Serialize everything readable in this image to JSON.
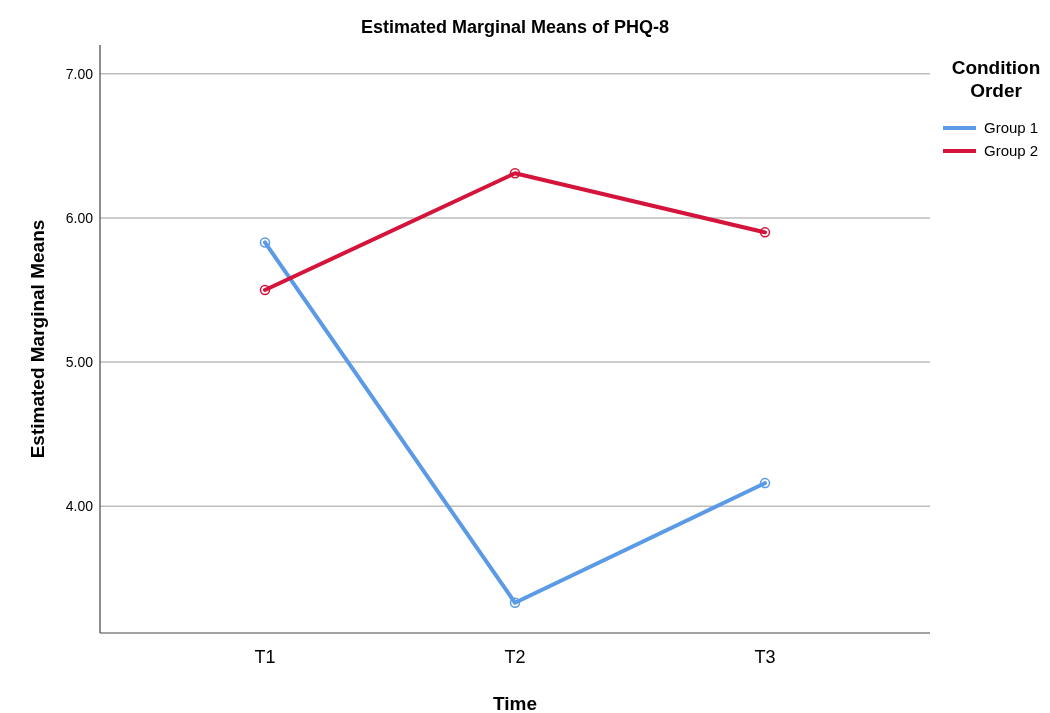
{
  "chart_data": {
    "type": "line",
    "title": "Estimated Marginal Means of PHQ-8",
    "xlabel": "Time",
    "ylabel": "Estimated Marginal Means",
    "legend_title": "Condition Order",
    "categories": [
      "T1",
      "T2",
      "T3"
    ],
    "series": [
      {
        "name": "Group 1",
        "color": "#5b9be6",
        "values": [
          5.83,
          3.33,
          4.16
        ]
      },
      {
        "name": "Group 2",
        "color": "#d5143c",
        "values": [
          5.5,
          6.31,
          5.9
        ]
      }
    ],
    "ylim": [
      3.12,
      7.2
    ],
    "yticks": [
      {
        "value": 4,
        "label": "4.00"
      },
      {
        "value": 5,
        "label": "5.00"
      },
      {
        "value": 6,
        "label": "6.00"
      },
      {
        "value": 7,
        "label": "7.00"
      }
    ],
    "grid": "y",
    "legend": "top right",
    "marker": "circle",
    "line_style": "solid"
  }
}
